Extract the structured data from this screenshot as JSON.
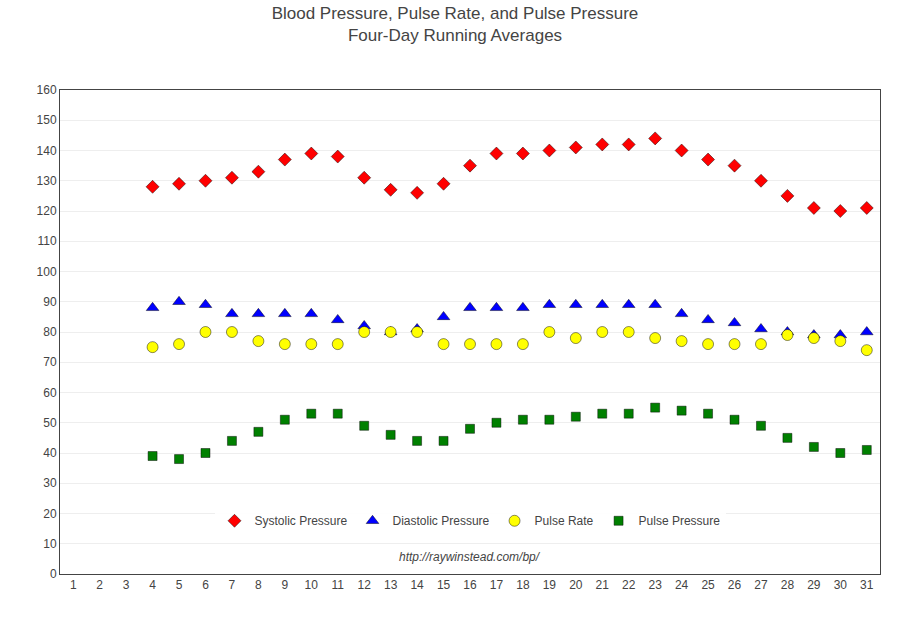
{
  "chart_data": {
    "type": "scatter",
    "title": "Blood Pressure, Pulse Rate, and Pulse Pressure",
    "subtitle": "Four-Day Running Averages",
    "x": [
      4,
      5,
      6,
      7,
      8,
      9,
      10,
      11,
      12,
      13,
      14,
      15,
      16,
      17,
      18,
      19,
      20,
      21,
      22,
      23,
      24,
      25,
      26,
      27,
      28,
      29,
      30,
      31
    ],
    "series": [
      {
        "name": "Systolic Pressure",
        "color": "#FF0000",
        "marker": "diamond",
        "values": [
          128,
          129,
          130,
          131,
          133,
          137,
          139,
          138,
          131,
          127,
          126,
          129,
          135,
          139,
          139,
          140,
          141,
          142,
          142,
          144,
          140,
          137,
          135,
          130,
          125,
          121,
          120,
          121
        ]
      },
      {
        "name": "Diastolic Pressure",
        "color": "#0000FF",
        "marker": "triangle-up",
        "values": [
          88,
          90,
          89,
          86,
          86,
          86,
          86,
          84,
          82,
          80,
          81,
          85,
          88,
          88,
          88,
          89,
          89,
          89,
          89,
          89,
          86,
          84,
          83,
          81,
          80,
          79,
          79,
          80
        ]
      },
      {
        "name": "Pulse Rate",
        "color": "#FFFF00",
        "marker": "circle",
        "values": [
          75,
          76,
          80,
          80,
          77,
          76,
          76,
          76,
          80,
          80,
          80,
          76,
          76,
          76,
          76,
          80,
          78,
          80,
          80,
          78,
          77,
          76,
          76,
          76,
          79,
          78,
          77,
          74
        ]
      },
      {
        "name": "Pulse Pressure",
        "color": "#008000",
        "marker": "square",
        "values": [
          39,
          38,
          40,
          44,
          47,
          51,
          53,
          53,
          49,
          46,
          44,
          44,
          48,
          50,
          51,
          51,
          52,
          53,
          53,
          55,
          54,
          53,
          51,
          49,
          45,
          42,
          40,
          41
        ]
      }
    ],
    "annotations": [
      "http://raywinstead.com/bp/"
    ],
    "xlim": [
      0.5,
      31.5
    ],
    "xticks": [
      1,
      2,
      3,
      4,
      5,
      6,
      7,
      8,
      9,
      10,
      11,
      12,
      13,
      14,
      15,
      16,
      17,
      18,
      19,
      20,
      21,
      22,
      23,
      24,
      25,
      26,
      27,
      28,
      29,
      30,
      31
    ],
    "ylim": [
      0,
      160
    ],
    "yticks": [
      0,
      10,
      20,
      30,
      40,
      50,
      60,
      70,
      80,
      90,
      100,
      110,
      120,
      130,
      140,
      150,
      160
    ],
    "grid": "y",
    "legend": "lower center"
  }
}
